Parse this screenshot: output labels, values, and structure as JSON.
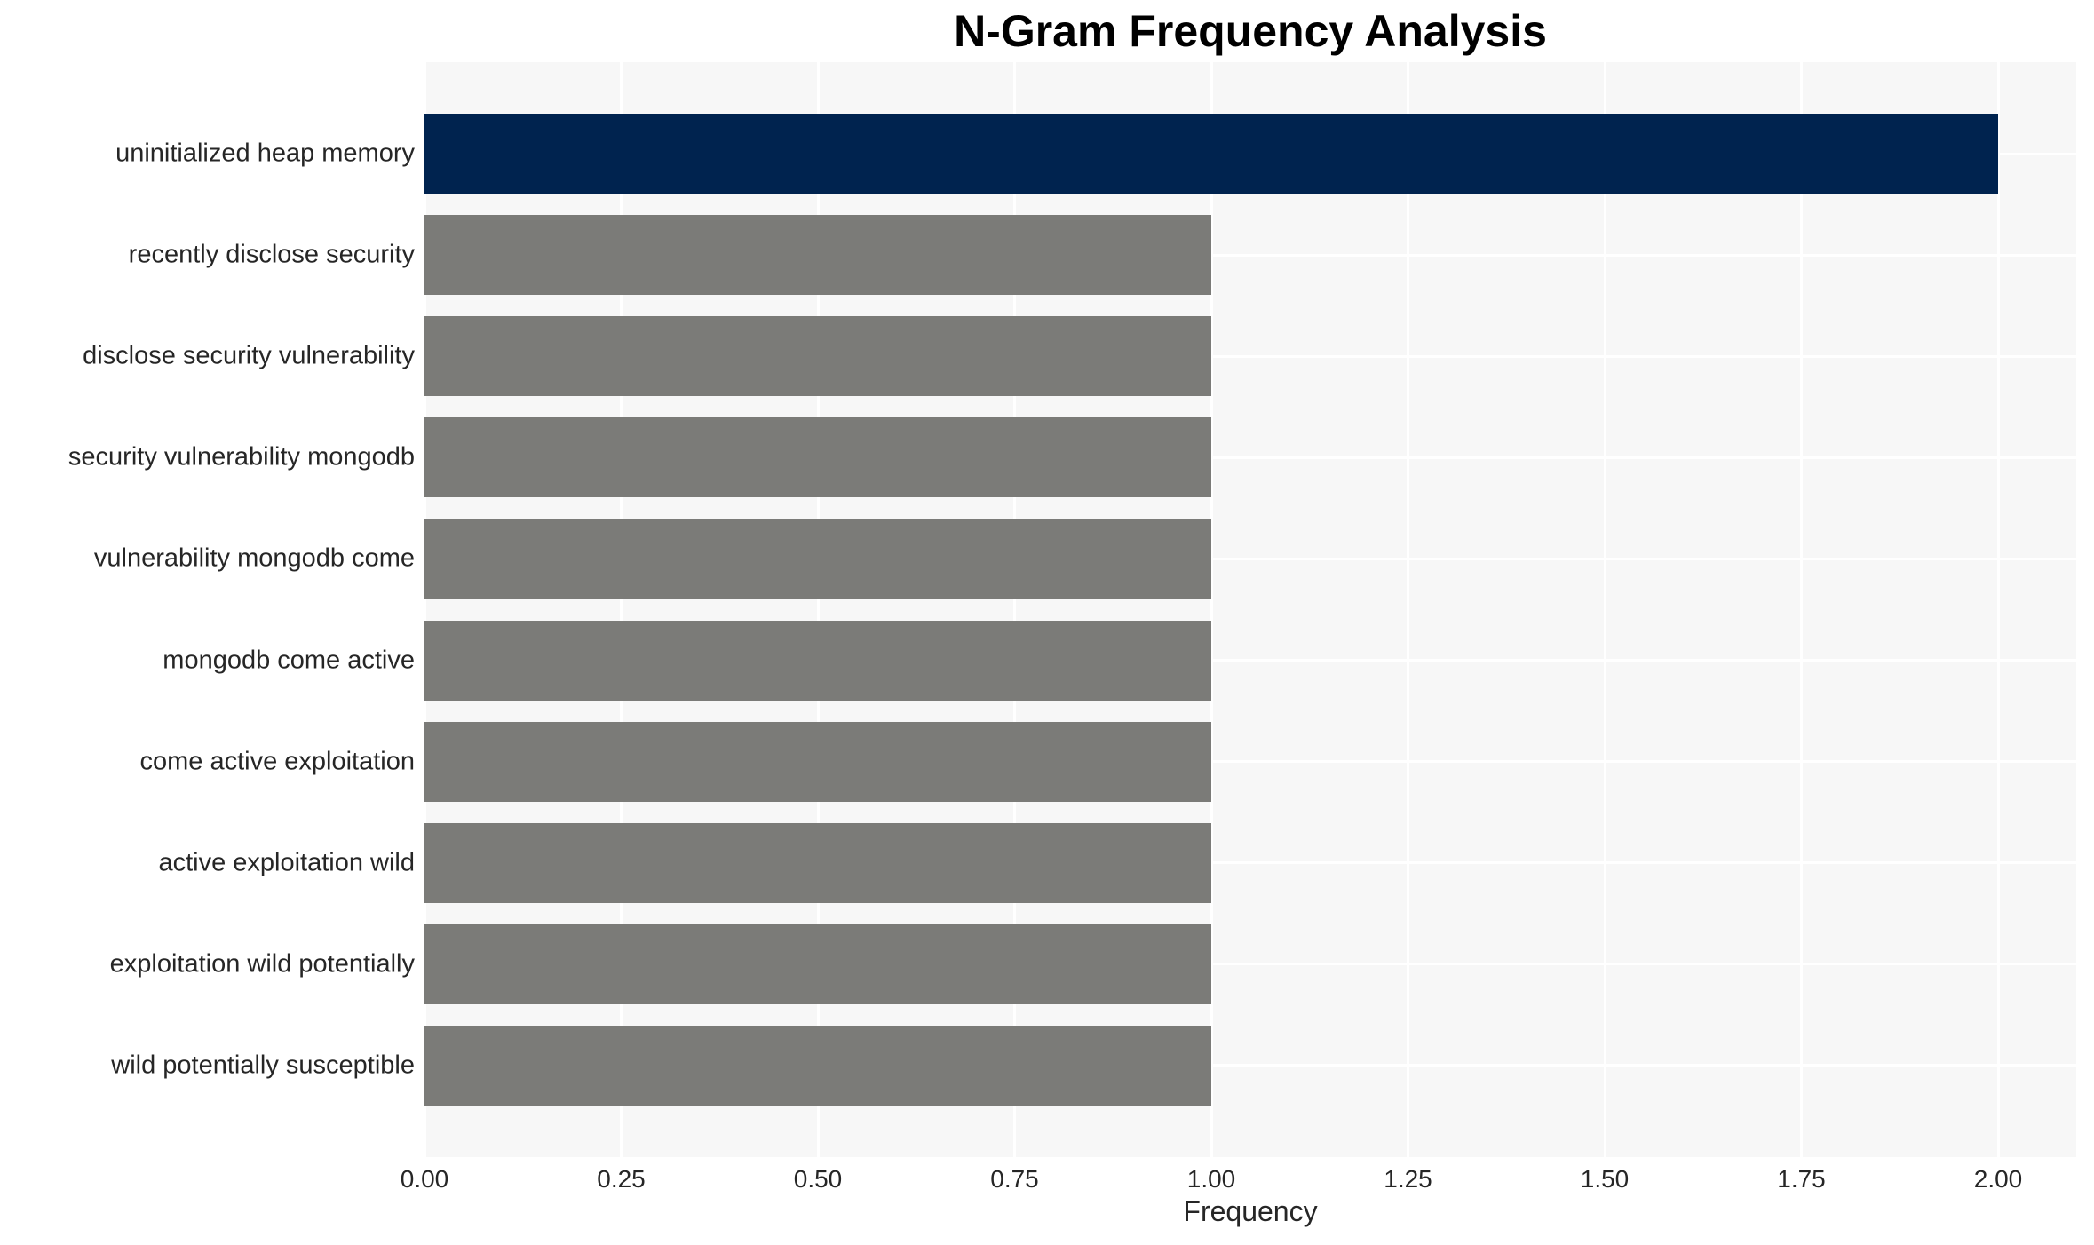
{
  "chart_data": {
    "type": "bar",
    "orientation": "horizontal",
    "title": "N-Gram Frequency Analysis",
    "xlabel": "Frequency",
    "ylabel": "",
    "categories": [
      "uninitialized heap memory",
      "recently disclose security",
      "disclose security vulnerability",
      "security vulnerability mongodb",
      "vulnerability mongodb come",
      "mongodb come active",
      "come active exploitation",
      "active exploitation wild",
      "exploitation wild potentially",
      "wild potentially susceptible"
    ],
    "values": [
      2.0,
      1.0,
      1.0,
      1.0,
      1.0,
      1.0,
      1.0,
      1.0,
      1.0,
      1.0
    ],
    "highlight_index": 0,
    "xlim": [
      0,
      2.1
    ],
    "xticks": [
      "0.00",
      "0.25",
      "0.50",
      "0.75",
      "1.00",
      "1.25",
      "1.50",
      "1.75",
      "2.00"
    ],
    "grid": true,
    "legend": false,
    "bar_colors": {
      "highlight": "#00234f",
      "default": "#7b7b78"
    },
    "colors": {
      "figure_background": "#ffffff",
      "plot_background": "#f7f7f7",
      "gridline": "#ffffff",
      "tick_text": "#262626",
      "title_text": "#000000"
    }
  }
}
